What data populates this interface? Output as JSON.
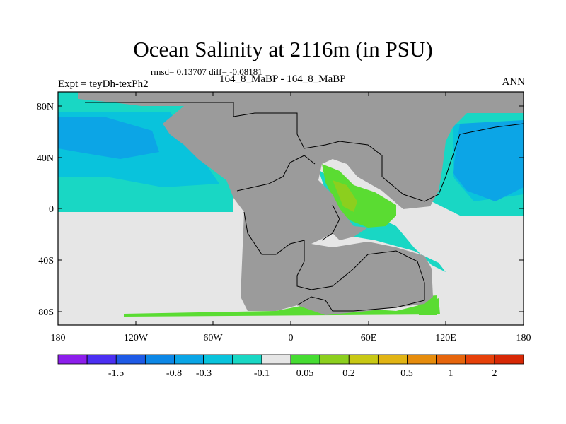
{
  "header": {
    "title": "Ocean Salinity at 2116m (in PSU)",
    "stats": "rmsd= 0.13707 diff= -0.08181",
    "expt": "Expt = teyDh-texPh2",
    "comparison": "164_8_MaBP - 164_8_MaBP",
    "season": "ANN"
  },
  "map": {
    "lat_ticks": [
      "80N",
      "40N",
      "0",
      "40S",
      "80S"
    ],
    "lon_ticks": [
      "180",
      "120W",
      "60W",
      "0",
      "60E",
      "120E",
      "180"
    ],
    "colors": {
      "land": "#9b9b9b",
      "no_change": "#e6e6e6",
      "ocean_teal": "#19d7c4",
      "ocean_cyan": "#09c3dc",
      "ocean_blue": "#0ca5e6",
      "ocean_green": "#5adc32",
      "ocean_yellowgreen": "#8ccf1e"
    }
  },
  "colorbar": {
    "labels": [
      "-1.5",
      "-0.8",
      "-0.3",
      "-0.1",
      "0.05",
      "0.2",
      "0.5",
      "1",
      "2"
    ],
    "colors": [
      "#8c1eeb",
      "#4b2ff2",
      "#1e5ae6",
      "#0c87e6",
      "#0aa5e6",
      "#09c3dc",
      "#19d7c4",
      "#e6e6e6",
      "#46dc32",
      "#8ccf1e",
      "#c8c814",
      "#e1b414",
      "#e68c0c",
      "#e6650c",
      "#e6410a",
      "#d72805"
    ]
  }
}
